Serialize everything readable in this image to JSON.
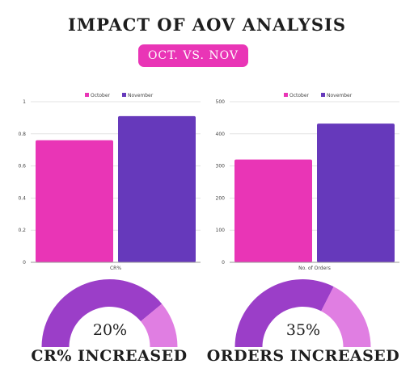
{
  "title": "IMPACT OF AOV ANALYSIS",
  "subtitle": "OCT. VS. NOV",
  "colors": {
    "october": "#e935b6",
    "november": "#6639bb",
    "gauge_main": "#9b3ec8",
    "gauge_rest": "#e07ee2"
  },
  "chart_data": [
    {
      "type": "bar",
      "categories": [
        "CR%"
      ],
      "series": [
        {
          "name": "October",
          "values": [
            0.76
          ]
        },
        {
          "name": "November",
          "values": [
            0.91
          ]
        }
      ],
      "xlabel": "",
      "ylabel": "",
      "ylim": [
        0,
        1
      ],
      "yticks": [
        0,
        0.2,
        0.4,
        0.6,
        0.8,
        1
      ],
      "ytick_labels": [
        "0",
        "0.2",
        "0.4",
        "0.6",
        "0.8",
        "1"
      ],
      "legend": "top-center",
      "grid": true
    },
    {
      "type": "bar",
      "categories": [
        "No. of Orders"
      ],
      "series": [
        {
          "name": "October",
          "values": [
            320
          ]
        },
        {
          "name": "November",
          "values": [
            432
          ]
        }
      ],
      "xlabel": "",
      "ylabel": "",
      "ylim": [
        0,
        500
      ],
      "yticks": [
        0,
        100,
        200,
        300,
        400,
        500
      ],
      "ytick_labels": [
        "0",
        "100",
        "200",
        "300",
        "400",
        "500"
      ],
      "legend": "top-center",
      "grid": true
    }
  ],
  "gauges": [
    {
      "value_label": "20%",
      "fraction": 0.78,
      "caption": "CR% INCREASED"
    },
    {
      "value_label": "35%",
      "fraction": 0.65,
      "caption": "ORDERS INCREASED"
    }
  ]
}
